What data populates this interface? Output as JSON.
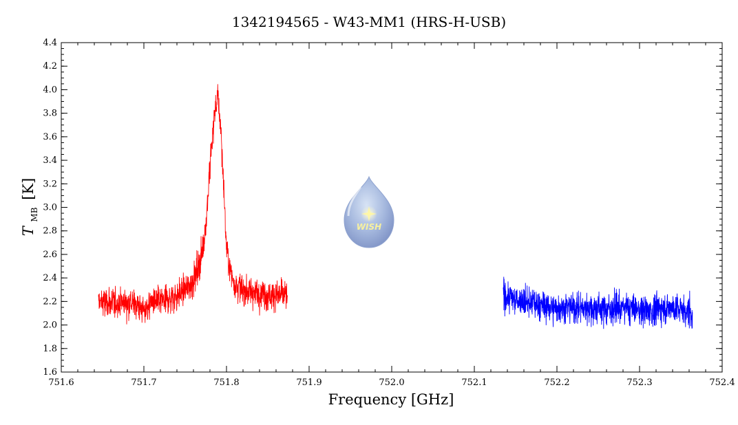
{
  "chart_data": {
    "type": "line",
    "title": "1342194565 - W43-MM1 (HRS-H-USB)",
    "xlabel": "Frequency [GHz]",
    "ylabel_main": "T",
    "ylabel_sub": "MB",
    "ylabel_unit": "[K]",
    "xlim": [
      751.6,
      752.4
    ],
    "ylim": [
      1.6,
      4.4
    ],
    "xticks": [
      "751.6",
      "751.7",
      "751.8",
      "751.9",
      "752.0",
      "752.1",
      "752.2",
      "752.3",
      "752.4"
    ],
    "yticks": [
      "1.6",
      "1.8",
      "2.0",
      "2.2",
      "2.4",
      "2.6",
      "2.8",
      "3.0",
      "3.2",
      "3.4",
      "3.6",
      "3.8",
      "4.0",
      "4.2",
      "4.4"
    ],
    "grid": false,
    "series": [
      {
        "color": "#ff0000",
        "x_range": [
          751.645,
          751.874
        ],
        "baseline": 2.2,
        "noise_amplitude": 0.17,
        "peak": {
          "x": 751.789,
          "y": 3.95,
          "width": 0.012
        },
        "x": [
          751.645,
          751.66,
          751.675,
          751.69,
          751.7,
          751.71,
          751.72,
          751.73,
          751.74,
          751.75,
          751.76,
          751.77,
          751.775,
          751.78,
          751.785,
          751.789,
          751.793,
          751.797,
          751.8,
          751.805,
          751.81,
          751.82,
          751.83,
          751.84,
          751.85,
          751.86,
          751.874
        ],
        "y": [
          2.2,
          2.18,
          2.2,
          2.18,
          2.12,
          2.2,
          2.2,
          2.22,
          2.25,
          2.3,
          2.38,
          2.6,
          2.85,
          3.35,
          3.75,
          3.95,
          3.7,
          3.1,
          2.65,
          2.45,
          2.35,
          2.3,
          2.28,
          2.28,
          2.25,
          2.26,
          2.25
        ]
      },
      {
        "color": "#0000ff",
        "x_range": [
          752.135,
          752.364
        ],
        "baseline": 2.15,
        "noise_amplitude": 0.17,
        "x": [
          752.135,
          752.16,
          752.19,
          752.22,
          752.25,
          752.28,
          752.31,
          752.34,
          752.364
        ],
        "y": [
          2.25,
          2.2,
          2.15,
          2.15,
          2.14,
          2.15,
          2.12,
          2.15,
          2.1
        ]
      }
    ],
    "logo_text": "WISH"
  }
}
